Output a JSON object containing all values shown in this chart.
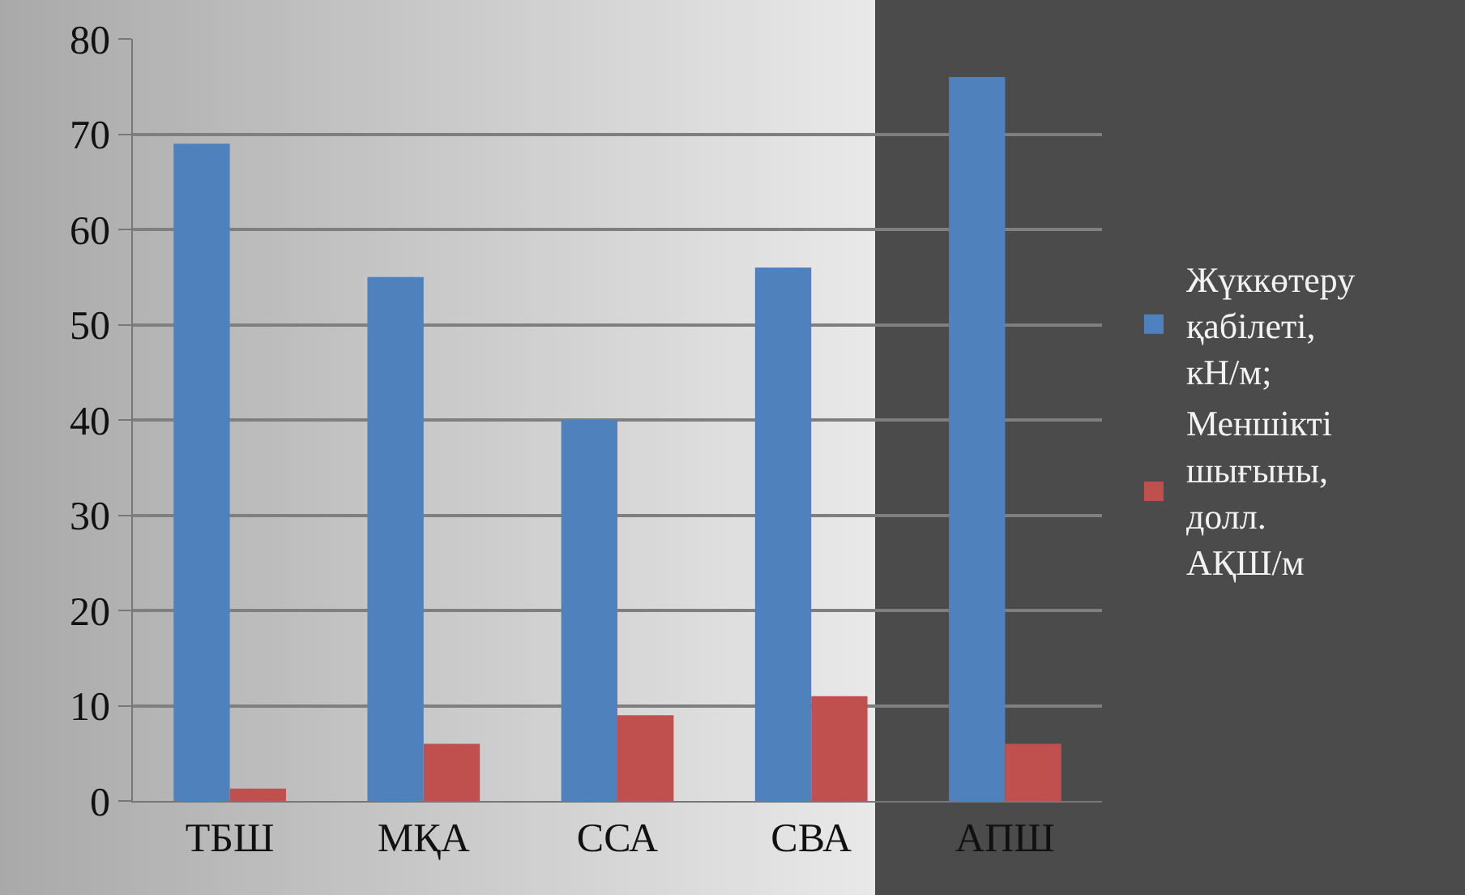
{
  "chart_data": {
    "type": "bar",
    "categories": [
      "ТБШ",
      "МҚА",
      "ССА",
      "СВА",
      "АПШ"
    ],
    "series": [
      {
        "name": "Жүккөтеру қабілеті, кН/м;",
        "color": "#4f81bd",
        "values": [
          69,
          55,
          40,
          56,
          76
        ]
      },
      {
        "name": "Меншікті шығыны, долл. АҚШ/м",
        "color": "#c0504d",
        "values": [
          1.3,
          6,
          9,
          11,
          6
        ]
      }
    ],
    "ylim": [
      0,
      80
    ],
    "yticks": [
      0,
      10,
      20,
      30,
      40,
      50,
      60,
      70,
      80
    ],
    "grid": "y",
    "legend": "right"
  }
}
